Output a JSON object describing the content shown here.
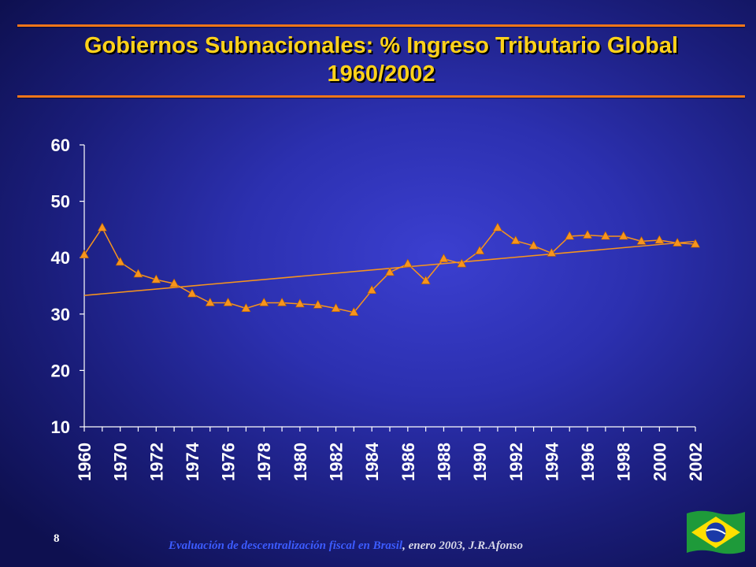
{
  "slide": {
    "title_line1": "Gobiernos Subnacionales: % Ingreso Tributario Global",
    "title_line2": "1960/2002",
    "page_number": "8",
    "footer_part1": "Evaluación de descentralización fiscal en Brasil",
    "footer_part2": ", enero 2003, J.R.Afonso",
    "flag_icon": "brazil-flag-icon"
  },
  "colors": {
    "series": "#f7941d",
    "trend": "#f7941d",
    "axis": "#ffffff",
    "title": "#ffd21a"
  },
  "chart_data": {
    "type": "line",
    "title": "Gobiernos Subnacionales: % Ingreso Tributario Global 1960/2002",
    "xlabel": "",
    "ylabel": "",
    "ylim": [
      10,
      60
    ],
    "yticks": [
      10,
      20,
      30,
      40,
      50,
      60
    ],
    "grid": false,
    "legend": "none",
    "categories": [
      "1960",
      "1965",
      "1970",
      "1971",
      "1972",
      "1973",
      "1974",
      "1975",
      "1976",
      "1977",
      "1978",
      "1979",
      "1980",
      "1981",
      "1982",
      "1983",
      "1984",
      "1985",
      "1986",
      "1987",
      "1988",
      "1989",
      "1990",
      "1991",
      "1992",
      "1993",
      "1994",
      "1995",
      "1996",
      "1997",
      "1998",
      "1999",
      "2000",
      "2001",
      "2002"
    ],
    "tick_labels": [
      "1960",
      "1970",
      "1972",
      "1974",
      "1976",
      "1978",
      "1980",
      "1982",
      "1984",
      "1986",
      "1988",
      "1990",
      "1992",
      "1994",
      "1996",
      "1998",
      "2000",
      "2002"
    ],
    "series": [
      {
        "values": [
          40.5,
          45.3,
          39.2,
          37.1,
          36.1,
          35.4,
          33.6,
          32.0,
          32.0,
          31.0,
          32.0,
          32.0,
          31.8,
          31.6,
          31.0,
          30.3,
          34.2,
          37.4,
          38.9,
          35.9,
          39.8,
          38.9,
          41.2,
          45.3,
          43.0,
          42.1,
          40.8,
          43.8,
          44.0,
          43.8,
          43.8,
          42.9,
          43.1,
          42.6,
          42.4
        ]
      }
    ],
    "trendline": {
      "start": 33.3,
      "end": 42.9
    }
  }
}
